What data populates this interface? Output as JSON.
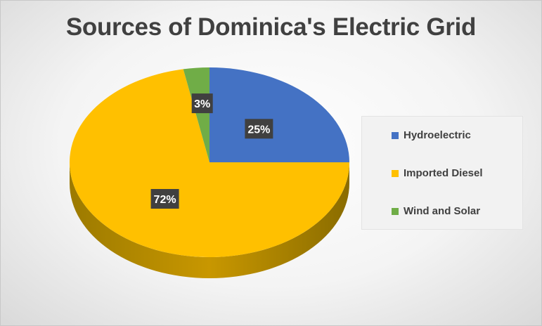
{
  "chart_data": {
    "type": "pie",
    "title": "Sources of Dominica's Electric Grid",
    "legend_position": "right",
    "slices": [
      {
        "name": "Hydroelectric",
        "value": 25,
        "label": "25%",
        "color": "#4472C4"
      },
      {
        "name": "Imported Diesel",
        "value": 72,
        "label": "72%",
        "color": "#FFC000"
      },
      {
        "name": "Wind and Solar",
        "value": 3,
        "label": "3%",
        "color": "#70AD47"
      }
    ]
  }
}
